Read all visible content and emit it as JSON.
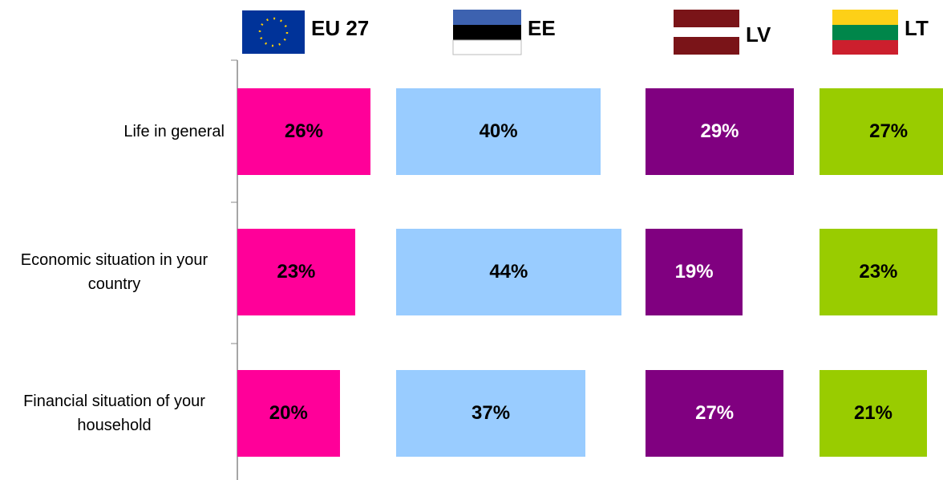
{
  "chart_data": {
    "type": "bar",
    "orientation": "horizontal",
    "categories": [
      "Life in general",
      "Economic situation in your country",
      "Financial situation of your household"
    ],
    "series": [
      {
        "name": "EU 27",
        "color": "#ff0099",
        "label_color": "#000000",
        "values": [
          26,
          23,
          20
        ],
        "value_labels": [
          "26%",
          "23%",
          "20%"
        ]
      },
      {
        "name": "EE",
        "color": "#99ccff",
        "label_color": "#000000",
        "values": [
          40,
          44,
          37
        ],
        "value_labels": [
          "40%",
          "44%",
          "37%"
        ]
      },
      {
        "name": "LV",
        "color": "#800080",
        "label_color": "#ffffff",
        "values": [
          29,
          19,
          27
        ],
        "value_labels": [
          "29%",
          "19%",
          "27%"
        ]
      },
      {
        "name": "LT",
        "color": "#99cc00",
        "label_color": "#000000",
        "values": [
          27,
          23,
          21
        ],
        "value_labels": [
          "27%",
          "23%",
          "21%"
        ]
      }
    ]
  }
}
